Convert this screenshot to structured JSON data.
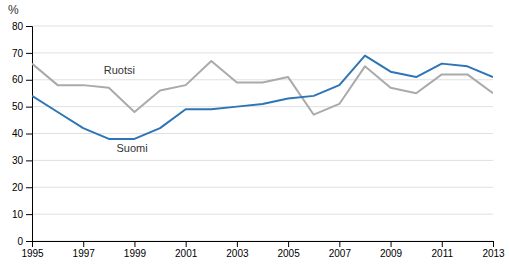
{
  "chart_data": {
    "type": "line",
    "x": [
      1995,
      1996,
      1997,
      1998,
      1999,
      2000,
      2001,
      2002,
      2003,
      2004,
      2005,
      2006,
      2007,
      2008,
      2009,
      2010,
      2011,
      2012,
      2013
    ],
    "series": [
      {
        "color": "#AAAAAA",
        "values": [
          66,
          58,
          58,
          57,
          48,
          56,
          58,
          67,
          59,
          59,
          61,
          47,
          51,
          65,
          57,
          55,
          62,
          62,
          55
        ]
      },
      {
        "color": "#2E75B6",
        "values": [
          54,
          48,
          42,
          38,
          38,
          42,
          49,
          49,
          50,
          51,
          53,
          54,
          58,
          69,
          63,
          61,
          66,
          65,
          61
        ]
      }
    ],
    "annotations": [
      {
        "text": "Ruotsi",
        "x": 1997.8,
        "y": 62
      },
      {
        "text": "Suomi",
        "x": 1998.3,
        "y": 33
      }
    ],
    "y_label": "%",
    "xlim": [
      1995,
      2013
    ],
    "xticks": [
      1995,
      1997,
      1999,
      2001,
      2003,
      2005,
      2007,
      2009,
      2011,
      2013
    ],
    "ylim": [
      0,
      80
    ],
    "yticks": [
      0,
      10,
      20,
      30,
      40,
      50,
      60,
      70,
      80
    ],
    "grid": true
  }
}
